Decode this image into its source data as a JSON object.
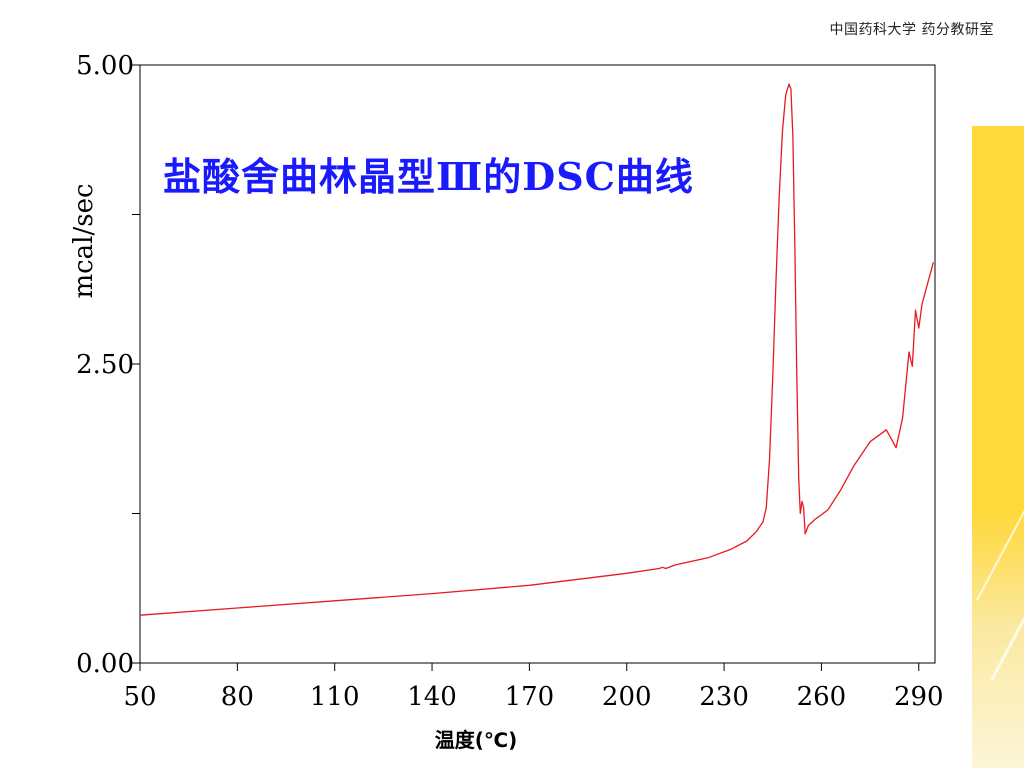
{
  "header": {
    "text": "中国药科大学  药分教研室"
  },
  "chart_data": {
    "type": "line",
    "title": "盐酸舍曲林晶型Ⅲ的DSC曲线",
    "xlabel": "温度(℃)",
    "ylabel": "mcal/sec",
    "xlim": [
      50,
      295
    ],
    "ylim": [
      0,
      5
    ],
    "x_ticks": [
      50,
      80,
      110,
      140,
      170,
      200,
      230,
      260,
      290
    ],
    "x_tick_labels": [
      "50",
      "80",
      "110",
      "140",
      "170",
      "200",
      "230",
      "260",
      "290"
    ],
    "y_major_ticks": [
      0,
      2.5,
      5
    ],
    "y_tick_labels": [
      "0.00",
      "2.50",
      "5.00"
    ],
    "y_minor_ticks": [
      1.25,
      3.75
    ],
    "grid": false,
    "series": [
      {
        "color": "#e8191f",
        "points": [
          [
            50,
            0.4
          ],
          [
            80,
            0.46
          ],
          [
            110,
            0.52
          ],
          [
            140,
            0.58
          ],
          [
            170,
            0.65
          ],
          [
            200,
            0.75
          ],
          [
            210,
            0.79
          ],
          [
            211,
            0.8
          ],
          [
            212,
            0.79
          ],
          [
            215,
            0.82
          ],
          [
            225,
            0.88
          ],
          [
            232,
            0.95
          ],
          [
            237,
            1.02
          ],
          [
            240,
            1.1
          ],
          [
            242,
            1.18
          ],
          [
            243,
            1.3
          ],
          [
            244,
            1.7
          ],
          [
            245,
            2.4
          ],
          [
            246,
            3.2
          ],
          [
            247,
            3.9
          ],
          [
            248,
            4.45
          ],
          [
            249,
            4.75
          ],
          [
            250,
            4.84
          ],
          [
            250.6,
            4.8
          ],
          [
            251.2,
            4.4
          ],
          [
            251.8,
            3.5
          ],
          [
            252.4,
            2.4
          ],
          [
            253,
            1.55
          ],
          [
            253.5,
            1.25
          ],
          [
            254,
            1.35
          ],
          [
            254.5,
            1.3
          ],
          [
            255,
            1.08
          ],
          [
            256,
            1.15
          ],
          [
            258,
            1.2
          ],
          [
            262,
            1.28
          ],
          [
            266,
            1.45
          ],
          [
            270,
            1.65
          ],
          [
            275,
            1.85
          ],
          [
            280,
            1.95
          ],
          [
            283,
            1.8
          ],
          [
            285,
            2.05
          ],
          [
            287,
            2.6
          ],
          [
            288,
            2.48
          ],
          [
            289,
            2.95
          ],
          [
            290,
            2.8
          ],
          [
            291,
            3.0
          ],
          [
            293,
            3.2
          ],
          [
            294.5,
            3.35
          ]
        ]
      }
    ]
  }
}
